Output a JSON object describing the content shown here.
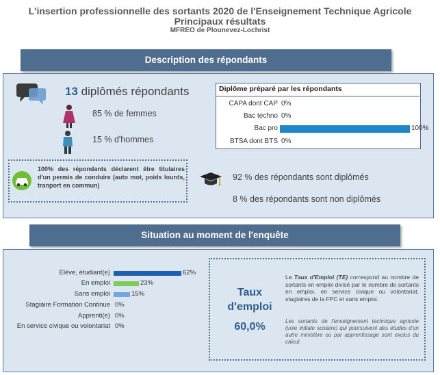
{
  "header": {
    "title_line1": "L'insertion professionnelle des sortants 2020 de l'Enseignement Technique Agricole",
    "title_line2": "Principaux résultats",
    "subtitle": "MFREO de Plounevez-Lochrist"
  },
  "section1": {
    "title": "Description des répondants",
    "respondents_count": "13",
    "respondents_label": " diplômés répondants",
    "women": "85 % de femmes",
    "men": "15 % d'hommes",
    "icons": [
      "speech-bubbles-icon",
      "woman-icon",
      "man-icon",
      "car-icon",
      "graduation-cap-icon"
    ],
    "permis_text": "100% des répondants déclarent être titulaires d'un permis de conduire (auto mot, poids lourds, tranport en commun)",
    "diplomes": "92 % des répondants sont diplômés",
    "non_diplomes": "8 % des répondants sont non diplômés"
  },
  "diplome_chart": {
    "type": "bar",
    "title": "Diplôme préparé par les répondants",
    "categories": [
      "CAPA dont CAP",
      "Bac techno",
      "Bac pro",
      "BTSA dont BTS"
    ],
    "values": [
      0,
      0,
      100,
      0
    ],
    "value_labels": [
      "0%",
      "0%",
      "100%",
      "0%"
    ],
    "xlim": [
      0,
      100
    ],
    "color": "#1f87c9"
  },
  "section2": {
    "title": "Situation au moment de l'enquête",
    "te_label_line1": "Taux",
    "te_label_line2": "d'emploi",
    "te_value": "60,0%",
    "te_def_prefix": "Le ",
    "te_def_term": "Taux d'Emploi (TE)",
    "te_def_rest": " correspond au nombre de sortants en emploi divisé par le nombre de sortants en emploi, en service civique ou volontariat, stagiaires de la FPC et sans emploi.",
    "te_note": "Les sortants de l'enseignement technique agricole (voie initiale scolaire) qui poursuivent des études d'un autre ministère ou par apprentissage sont exclus du calcul."
  },
  "chart_data": {
    "type": "bar",
    "categories": [
      "Elève, étudiant(e)",
      "En emploi",
      "Sans emploi",
      "Stagiaire Formation Continue",
      "Apprenti(e)",
      "En service civique ou volontariat"
    ],
    "values": [
      62,
      23,
      15,
      0,
      0,
      0
    ],
    "value_labels": [
      "62%",
      "23%",
      "15%",
      "0%",
      "0%",
      "0%"
    ],
    "colors": [
      "#1f5fb0",
      "#7ecb5a",
      "#6fa8dc",
      "#1f5fb0",
      "#1f5fb0",
      "#1f5fb0"
    ],
    "xlim": [
      0,
      100
    ]
  }
}
